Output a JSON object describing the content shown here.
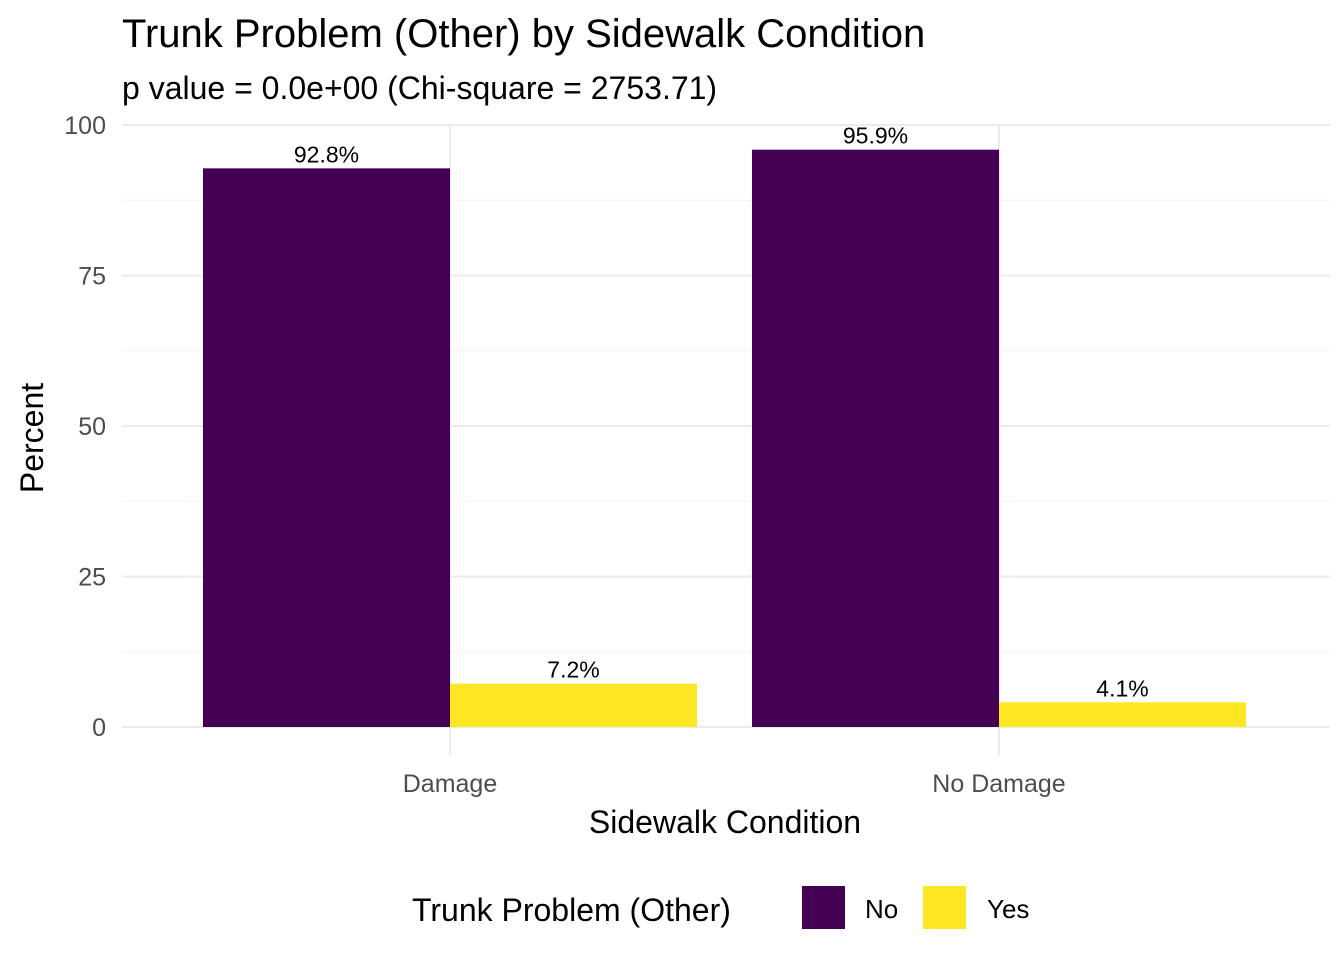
{
  "chart_data": {
    "type": "bar",
    "title": "Trunk Problem (Other) by Sidewalk Condition",
    "subtitle": "p value = 0.0e+00 (Chi-square = 2753.71)",
    "xlabel": "Sidewalk Condition",
    "ylabel": "Percent",
    "categories": [
      "Damage",
      "No Damage"
    ],
    "series": [
      {
        "name": "No",
        "color": "#440154",
        "values": [
          92.8,
          95.9
        ],
        "labels": [
          "92.8%",
          "95.9%"
        ]
      },
      {
        "name": "Yes",
        "color": "#FDE725",
        "values": [
          7.2,
          4.1
        ],
        "labels": [
          "7.2%",
          "4.1%"
        ]
      }
    ],
    "ylim": [
      0,
      100
    ],
    "yticks": [
      0,
      25,
      50,
      75,
      100
    ],
    "grid": true,
    "legend": {
      "title": "Trunk Problem (Other)",
      "position": "bottom",
      "entries": [
        "No",
        "Yes"
      ]
    }
  }
}
